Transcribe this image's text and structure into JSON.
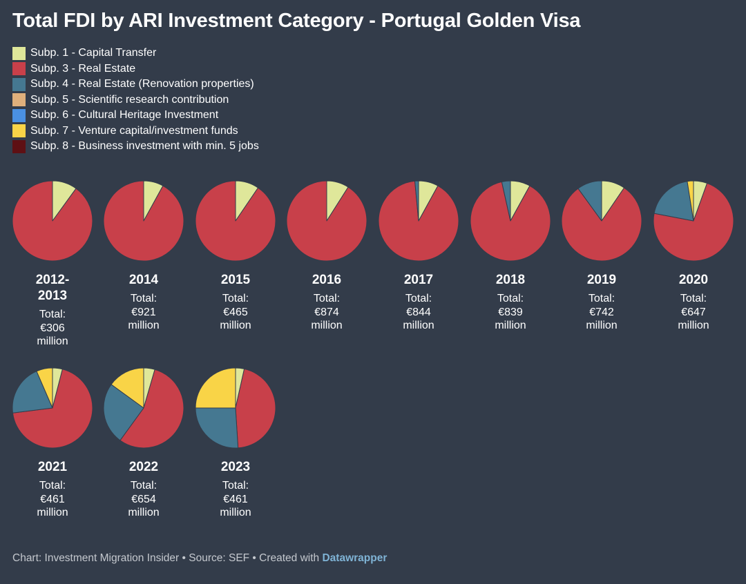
{
  "chart_data": {
    "type": "pie",
    "title": "Total FDI by ARI Investment Category - Portugal Golden Visa",
    "total_label": "Total:",
    "unit_label": "million",
    "series": [
      {
        "name": "Subp. 1 - Capital Transfer",
        "color": "#dfe79a"
      },
      {
        "name": "Subp. 3 - Real Estate",
        "color": "#c8404a"
      },
      {
        "name": "Subp. 4 - Real Estate (Renovation properties)",
        "color": "#457891"
      },
      {
        "name": "Subp. 5 - Scientific research contribution",
        "color": "#dfb07c"
      },
      {
        "name": "Subp. 6 - Cultural Heritage Investment",
        "color": "#4a90e2"
      },
      {
        "name": "Subp. 7 - Venture capital/investment funds",
        "color": "#f9d447"
      },
      {
        "name": "Subp. 8 - Business investment with min. 5 jobs",
        "color": "#5e1014"
      }
    ],
    "pies": [
      {
        "year": "2012-2013",
        "total": "€306",
        "shares": [
          10,
          90,
          0,
          0,
          0,
          0,
          0
        ]
      },
      {
        "year": "2014",
        "total": "€921",
        "shares": [
          8,
          92,
          0,
          0,
          0,
          0,
          0
        ]
      },
      {
        "year": "2015",
        "total": "€465",
        "shares": [
          9.5,
          90.5,
          0,
          0,
          0,
          0,
          0
        ]
      },
      {
        "year": "2016",
        "total": "€874",
        "shares": [
          9,
          91,
          0,
          0,
          0,
          0,
          0
        ]
      },
      {
        "year": "2017",
        "total": "€844",
        "shares": [
          8,
          90.5,
          1.5,
          0,
          0,
          0,
          0
        ]
      },
      {
        "year": "2018",
        "total": "€839",
        "shares": [
          8,
          88.5,
          3.5,
          0,
          0,
          0,
          0
        ]
      },
      {
        "year": "2019",
        "total": "€742",
        "shares": [
          9.5,
          80.5,
          10,
          0,
          0,
          0,
          0
        ]
      },
      {
        "year": "2020",
        "total": "€647",
        "shares": [
          5.5,
          72.5,
          19.5,
          0,
          0,
          2.5,
          0
        ]
      },
      {
        "year": "2021",
        "total": "€461",
        "shares": [
          4,
          69,
          20.5,
          0,
          0,
          6.5,
          0
        ]
      },
      {
        "year": "2022",
        "total": "€654",
        "shares": [
          4.5,
          55.5,
          25,
          0,
          0,
          15,
          0
        ]
      },
      {
        "year": "2023",
        "total": "€461",
        "shares": [
          3.5,
          45.5,
          26,
          0,
          0,
          25,
          0
        ]
      }
    ]
  },
  "footer": {
    "prefix": "Chart: Investment Migration Insider • Source: SEF • Created with ",
    "link": "Datawrapper"
  }
}
